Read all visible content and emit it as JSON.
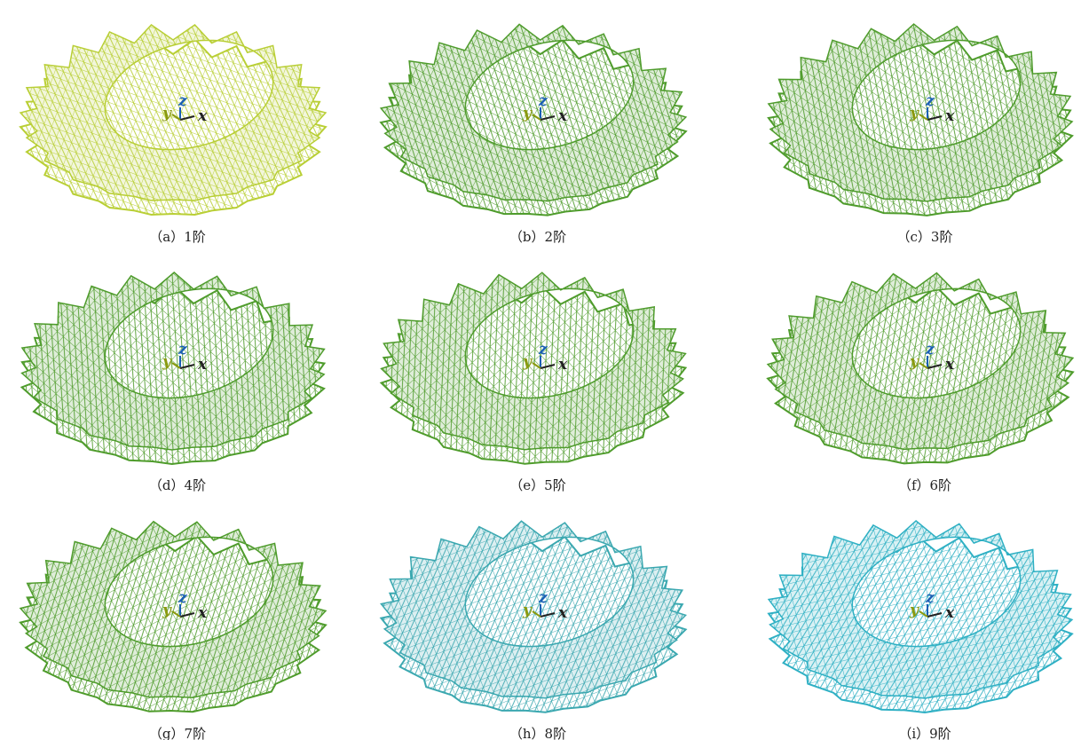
{
  "figure": {
    "axis_labels": {
      "y": "y",
      "z": "z",
      "x": "x"
    },
    "panels": [
      {
        "caption": "（a）1阶",
        "color": "#b9cf35"
      },
      {
        "caption": "（b）2阶",
        "color": "#4f9c2c"
      },
      {
        "caption": "（c）3阶",
        "color": "#4f9c2c"
      },
      {
        "caption": "（d）4阶",
        "color": "#4f9c2c"
      },
      {
        "caption": "（e）5阶",
        "color": "#4f9c2c"
      },
      {
        "caption": "（f）6阶",
        "color": "#4f9c2c"
      },
      {
        "caption": "（g）7阶",
        "color": "#4f9c2c"
      },
      {
        "caption": "（h）8阶",
        "color": "#3ba8b0"
      },
      {
        "caption": "（i）9阶",
        "color": "#2fb0c4"
      }
    ]
  }
}
